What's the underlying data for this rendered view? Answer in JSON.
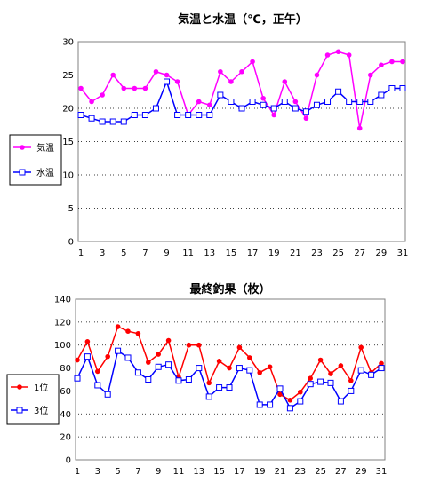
{
  "chart_data": [
    {
      "type": "line",
      "title": "気温と水温（℃，正午）",
      "x": [
        1,
        2,
        3,
        4,
        5,
        6,
        7,
        8,
        9,
        10,
        11,
        12,
        13,
        14,
        15,
        16,
        17,
        18,
        19,
        20,
        21,
        22,
        23,
        24,
        25,
        26,
        27,
        28,
        29,
        30,
        31
      ],
      "x_ticks": [
        1,
        3,
        5,
        7,
        9,
        11,
        13,
        15,
        17,
        19,
        21,
        23,
        25,
        27,
        29,
        31
      ],
      "ylim": [
        0,
        30
      ],
      "yticks": [
        0,
        5,
        10,
        15,
        20,
        25,
        30
      ],
      "grid": true,
      "legend_position": "left",
      "series": [
        {
          "name": "気温",
          "color": "#ff00ff",
          "marker": "dot",
          "values": [
            23,
            21,
            22,
            25,
            23,
            23,
            23,
            25.5,
            25,
            24,
            19,
            21,
            20.5,
            25.5,
            24,
            25.5,
            27,
            21.5,
            19,
            24,
            21,
            18.5,
            25,
            28,
            28.5,
            28,
            17,
            25,
            26.5,
            27,
            27
          ]
        },
        {
          "name": "水温",
          "color": "#0000ff",
          "marker": "square",
          "values": [
            19,
            18.5,
            18,
            18,
            18,
            19,
            19,
            20,
            24,
            19,
            19,
            19,
            19,
            22,
            21,
            20,
            21,
            20.5,
            20,
            21,
            20,
            19.5,
            20.5,
            21,
            22.5,
            21,
            21,
            21,
            22,
            23,
            23
          ]
        }
      ]
    },
    {
      "type": "line",
      "title": "最終釣果（枚）",
      "x": [
        1,
        2,
        3,
        4,
        5,
        6,
        7,
        8,
        9,
        10,
        11,
        12,
        13,
        14,
        15,
        16,
        17,
        18,
        19,
        20,
        21,
        22,
        23,
        24,
        25,
        26,
        27,
        28,
        29,
        30,
        31
      ],
      "x_ticks": [
        1,
        3,
        5,
        7,
        9,
        11,
        13,
        15,
        17,
        19,
        21,
        23,
        25,
        27,
        29,
        31
      ],
      "ylim": [
        0,
        140
      ],
      "yticks": [
        0,
        20,
        40,
        60,
        80,
        100,
        120,
        140
      ],
      "grid": true,
      "legend_position": "left",
      "series": [
        {
          "name": "1位",
          "color": "#ff0000",
          "marker": "dot",
          "values": [
            87,
            103,
            77,
            90,
            116,
            112,
            110,
            85,
            92,
            104,
            72,
            100,
            100,
            67,
            86,
            80,
            98,
            89,
            76,
            81,
            57,
            52,
            59,
            71,
            87,
            75,
            82,
            69,
            98,
            76,
            84
          ]
        },
        {
          "name": "3位",
          "color": "#0000ff",
          "marker": "square",
          "values": [
            71,
            90,
            65,
            57,
            95,
            89,
            76,
            70,
            81,
            83,
            69,
            70,
            80,
            55,
            63,
            63,
            80,
            78,
            48,
            48,
            62,
            45,
            51,
            66,
            68,
            67,
            51,
            60,
            78,
            74,
            80
          ]
        }
      ]
    }
  ]
}
